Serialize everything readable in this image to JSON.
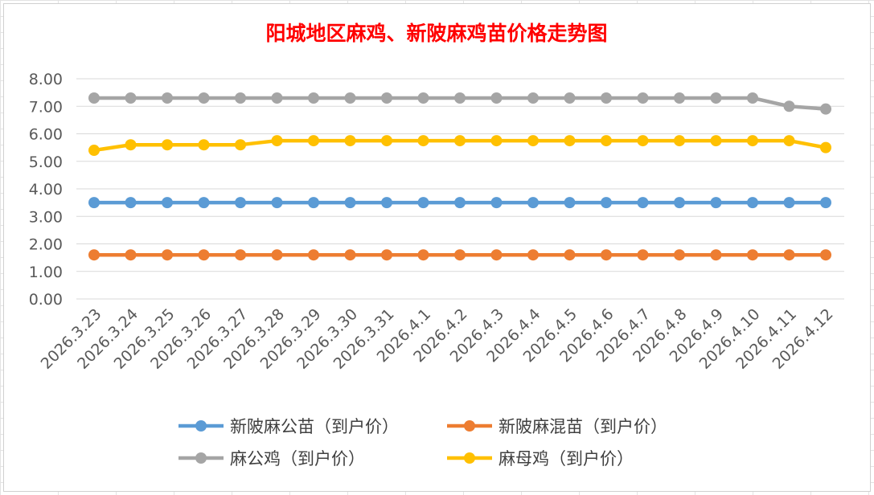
{
  "chart_data": {
    "type": "line",
    "title": "阳城地区麻鸡、新陂麻鸡苗价格走势图",
    "xlabel": "",
    "ylabel": "",
    "ylim": [
      0,
      8
    ],
    "yticks": [
      "0.00",
      "1.00",
      "2.00",
      "3.00",
      "4.00",
      "5.00",
      "6.00",
      "7.00",
      "8.00"
    ],
    "categories": [
      "2026.3.23",
      "2026.3.24",
      "2026.3.25",
      "2026.3.26",
      "2026.3.27",
      "2026.3.28",
      "2026.3.29",
      "2026.3.30",
      "2026.3.31",
      "2026.4.1",
      "2026.4.2",
      "2026.4.3",
      "2026.4.4",
      "2026.4.5",
      "2026.4.6",
      "2026.4.7",
      "2026.4.8",
      "2026.4.9",
      "2026.4.10",
      "2026.4.11",
      "2026.4.12"
    ],
    "series": [
      {
        "name": "新陂麻公苗（到户价）",
        "color": "#5b9bd5",
        "values": [
          3.5,
          3.5,
          3.5,
          3.5,
          3.5,
          3.5,
          3.5,
          3.5,
          3.5,
          3.5,
          3.5,
          3.5,
          3.5,
          3.5,
          3.5,
          3.5,
          3.5,
          3.5,
          3.5,
          3.5,
          3.5
        ]
      },
      {
        "name": "新陂麻混苗（到户价）",
        "color": "#ed7d31",
        "values": [
          1.6,
          1.6,
          1.6,
          1.6,
          1.6,
          1.6,
          1.6,
          1.6,
          1.6,
          1.6,
          1.6,
          1.6,
          1.6,
          1.6,
          1.6,
          1.6,
          1.6,
          1.6,
          1.6,
          1.6,
          1.6
        ]
      },
      {
        "name": "麻公鸡（到户价）",
        "color": "#a5a5a5",
        "values": [
          7.3,
          7.3,
          7.3,
          7.3,
          7.3,
          7.3,
          7.3,
          7.3,
          7.3,
          7.3,
          7.3,
          7.3,
          7.3,
          7.3,
          7.3,
          7.3,
          7.3,
          7.3,
          7.3,
          7.0,
          6.9
        ]
      },
      {
        "name": "麻母鸡（到户价）",
        "color": "#ffc000",
        "values": [
          5.4,
          5.6,
          5.6,
          5.6,
          5.6,
          5.75,
          5.75,
          5.75,
          5.75,
          5.75,
          5.75,
          5.75,
          5.75,
          5.75,
          5.75,
          5.75,
          5.75,
          5.75,
          5.75,
          5.75,
          5.5
        ]
      }
    ],
    "legend_position": "bottom",
    "grid": true
  }
}
